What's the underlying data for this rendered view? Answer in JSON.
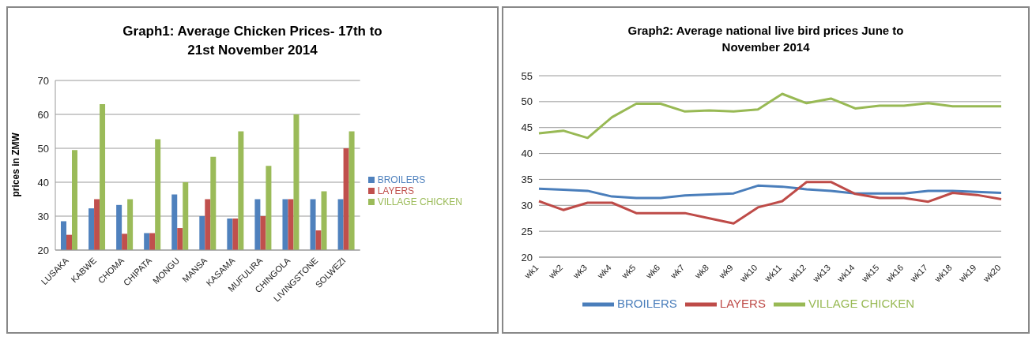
{
  "chart_data": [
    {
      "type": "bar",
      "title": "Graph1: Average Chicken Prices- 17th to 21st November 2014",
      "ylabel": "prices in ZMW",
      "categories": [
        "LUSAKA",
        "KABWE",
        "CHOMA",
        "CHIPATA",
        "MONGU",
        "MANSA",
        "KASAMA",
        "MUFULIRA",
        "CHINGOLA",
        "LIVINGSTONE",
        "SOLWEZI"
      ],
      "series": [
        {
          "name": "BROILERS",
          "color": "#4f81bd",
          "values": [
            28.5,
            32.3,
            33.3,
            25,
            36.4,
            30,
            29.3,
            35,
            35,
            35,
            35
          ]
        },
        {
          "name": "LAYERS",
          "color": "#c0504d",
          "values": [
            24.5,
            35,
            24.8,
            25,
            26.5,
            35,
            29.3,
            30,
            35,
            25.8,
            50
          ]
        },
        {
          "name": "VILLAGE CHICKEN",
          "color": "#9bbb59",
          "values": [
            49.5,
            63,
            35,
            52.7,
            40,
            47.5,
            55,
            44.8,
            60,
            37.3,
            55
          ]
        }
      ],
      "ylim": [
        20,
        70
      ],
      "yticks": [
        20,
        30,
        40,
        50,
        60,
        70
      ],
      "grid": "y",
      "legend": "right"
    },
    {
      "type": "line",
      "title": "Graph2: Average national live bird prices June to November 2014",
      "categories": [
        "wk1",
        "wk2",
        "wk3",
        "wk4",
        "wk5",
        "wk6",
        "wk7",
        "wk8",
        "wk9",
        "wk10",
        "wk11",
        "wk12",
        "wk13",
        "wk14",
        "wk15",
        "wk16",
        "wk17",
        "wk18",
        "wk19",
        "wk20"
      ],
      "series": [
        {
          "name": "BROILERS",
          "color": "#4a7ebb",
          "values": [
            33.2,
            33,
            32.8,
            31.7,
            31.4,
            31.4,
            31.9,
            32.1,
            32.3,
            33.8,
            33.6,
            33.1,
            32.8,
            32.3,
            32.3,
            32.3,
            32.8,
            32.8,
            32.6,
            32.4
          ]
        },
        {
          "name": "LAYERS",
          "color": "#be4b48",
          "values": [
            30.8,
            29.1,
            30.5,
            30.5,
            28.5,
            28.5,
            28.5,
            27.5,
            26.5,
            29.6,
            30.8,
            34.5,
            34.5,
            32.2,
            31.4,
            31.4,
            30.7,
            32.4,
            32,
            31.2
          ]
        },
        {
          "name": "VILLAGE CHICKEN",
          "color": "#98b954",
          "values": [
            43.9,
            44.4,
            43,
            47,
            49.6,
            49.6,
            48.1,
            48.3,
            48.1,
            48.5,
            51.5,
            49.7,
            50.6,
            48.7,
            49.2,
            49.2,
            49.7,
            49.1,
            49.1,
            49.1
          ]
        }
      ],
      "ylim": [
        20,
        55
      ],
      "yticks": [
        20,
        25,
        30,
        35,
        40,
        45,
        50,
        55
      ],
      "grid": "y",
      "legend": "bottom",
      "marker": "none"
    }
  ]
}
